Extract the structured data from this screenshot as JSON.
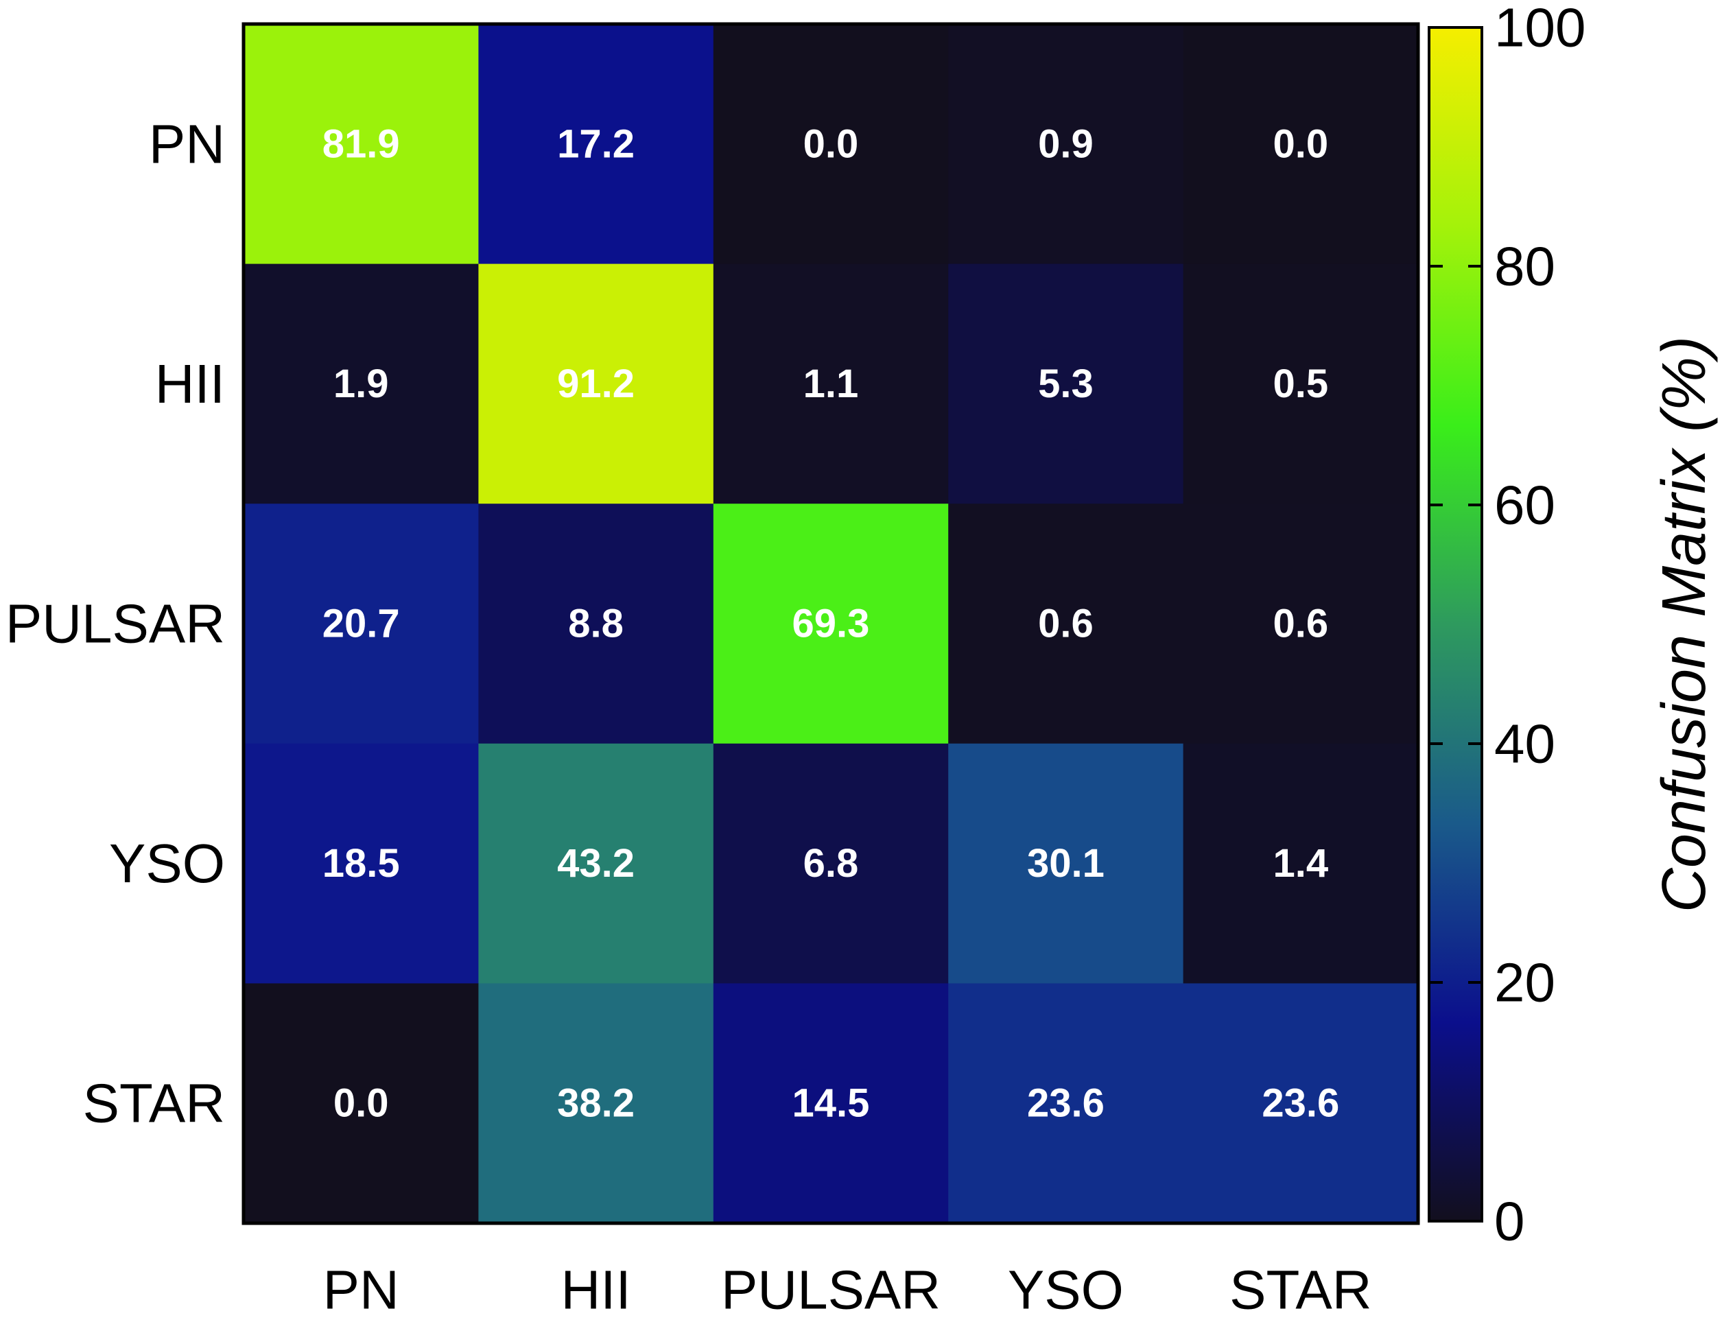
{
  "chart_data": {
    "type": "heatmap",
    "title": "",
    "xlabel": "",
    "ylabel": "",
    "rows": [
      "PN",
      "HII",
      "PULSAR",
      "YSO",
      "STAR"
    ],
    "columns": [
      "PN",
      "HII",
      "PULSAR",
      "YSO",
      "STAR"
    ],
    "values": [
      [
        81.9,
        17.2,
        0.0,
        0.9,
        0.0
      ],
      [
        1.9,
        91.2,
        1.1,
        5.3,
        0.5
      ],
      [
        20.7,
        8.8,
        69.3,
        0.6,
        0.6
      ],
      [
        18.5,
        43.2,
        6.8,
        30.1,
        1.4
      ],
      [
        0.0,
        38.2,
        14.5,
        23.6,
        23.6
      ]
    ],
    "value_labels": [
      [
        "81.9",
        "17.2",
        "0.0",
        "0.9",
        "0.0"
      ],
      [
        "1.9",
        "91.2",
        "1.1",
        "5.3",
        "0.5"
      ],
      [
        "20.7",
        "8.8",
        "69.3",
        "0.6",
        "0.6"
      ],
      [
        "18.5",
        "43.2",
        "6.8",
        "30.1",
        "1.4"
      ],
      [
        "0.0",
        "38.2",
        "14.5",
        "23.6",
        "23.6"
      ]
    ],
    "colorbar": {
      "label": "Confusion Matrix (%)",
      "range": [
        0,
        100
      ],
      "ticks": [
        "0",
        "20",
        "40",
        "60",
        "80",
        "100"
      ],
      "colormap": [
        "#120f1e",
        "#0b0f8c",
        "#1a5a8a",
        "#2e9a5e",
        "#3aee1a",
        "#a4f20a",
        "#f5ee00"
      ]
    },
    "grid": false,
    "legend": "colorbar-right"
  }
}
